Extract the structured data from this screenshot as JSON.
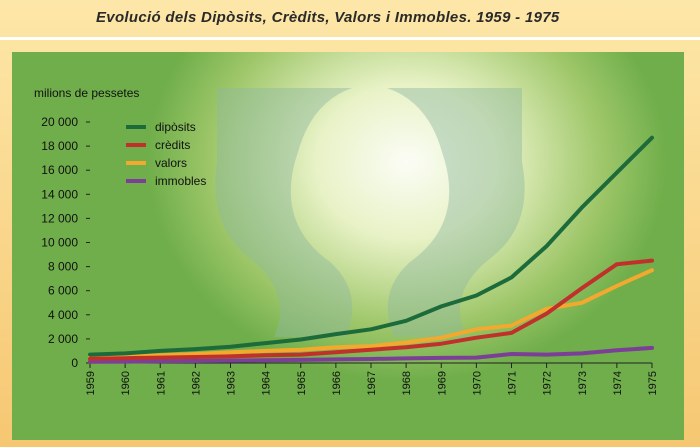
{
  "header": {
    "title": "Evolució dels Dipòsits, Crèdits, Valors i Immobles. 1959 - 1975"
  },
  "colors": {
    "background": "#f6c772",
    "panel": "#7fb85a",
    "rule": "#ffffff"
  },
  "chart_data": {
    "type": "line",
    "title": "Evolució dels Dipòsits, Crèdits, Valors i Immobles. 1959 - 1975",
    "ylabel": "milions de pessetes",
    "xlabel": "",
    "ylim": [
      0,
      20000
    ],
    "yticks": [
      0,
      2000,
      4000,
      6000,
      8000,
      10000,
      12000,
      14000,
      16000,
      18000,
      20000
    ],
    "ytick_labels": [
      "0",
      "2 000",
      "4 000",
      "6 000",
      "8 000",
      "10 000",
      "12 000",
      "14 000",
      "16 000",
      "18 000",
      "20 000"
    ],
    "categories": [
      "1959",
      "1960",
      "1961",
      "1962",
      "1963",
      "1964",
      "1965",
      "1966",
      "1967",
      "1968",
      "1969",
      "1970",
      "1971",
      "1972",
      "1973",
      "1974",
      "1975"
    ],
    "grid": false,
    "legend_position": "top-left",
    "series": [
      {
        "name": "dipòsits",
        "color": "#1d6b3a",
        "values": [
          700,
          800,
          1000,
          1150,
          1350,
          1650,
          1950,
          2400,
          2800,
          3500,
          4700,
          5600,
          7100,
          9700,
          12900,
          15800,
          18700
        ]
      },
      {
        "name": "crèdits",
        "color": "#c0312b",
        "values": [
          350,
          400,
          450,
          500,
          550,
          650,
          700,
          900,
          1100,
          1300,
          1600,
          2100,
          2500,
          4100,
          6200,
          8200,
          8500
        ]
      },
      {
        "name": "valors",
        "color": "#f3a92e",
        "values": [
          500,
          550,
          650,
          750,
          900,
          1000,
          1100,
          1300,
          1400,
          1700,
          2100,
          2800,
          3100,
          4500,
          5000,
          6400,
          7700
        ]
      },
      {
        "name": "immobles",
        "color": "#7b3f98",
        "values": [
          100,
          120,
          150,
          170,
          200,
          230,
          260,
          300,
          330,
          380,
          420,
          450,
          750,
          700,
          800,
          1050,
          1250
        ]
      }
    ]
  }
}
